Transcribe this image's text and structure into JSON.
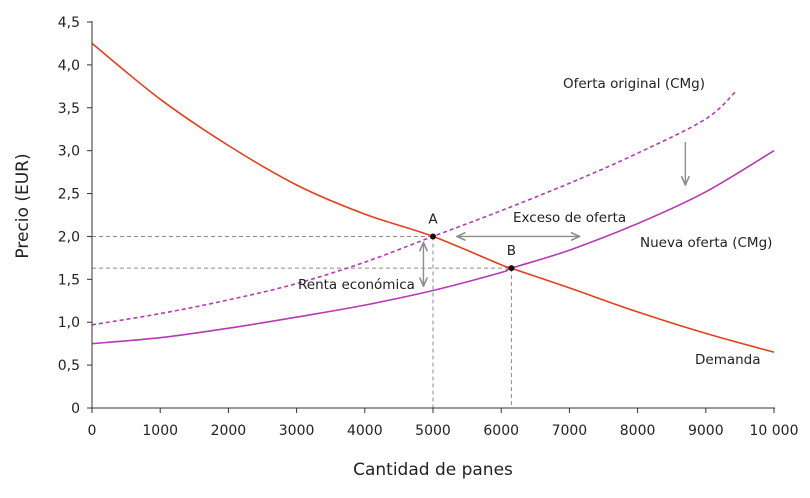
{
  "chart_data": {
    "type": "line",
    "xlabel": "Cantidad de panes",
    "ylabel": "Precio (EUR)",
    "xlim": [
      0,
      10000
    ],
    "ylim": [
      0,
      4.5
    ],
    "x_ticks": [
      0,
      1000,
      2000,
      3000,
      4000,
      5000,
      6000,
      7000,
      8000,
      9000,
      10000
    ],
    "x_tick_labels": [
      "0",
      "1000",
      "2000",
      "3000",
      "4000",
      "5000",
      "6000",
      "7000",
      "8000",
      "9000",
      "10 000"
    ],
    "y_ticks": [
      0,
      0.5,
      1.0,
      1.5,
      2.0,
      2.5,
      3.0,
      3.5,
      4.0,
      4.5
    ],
    "y_tick_labels": [
      "0",
      "0,5",
      "1,0",
      "1,5",
      "2,0",
      "2,5",
      "3,0",
      "3,5",
      "4,0",
      "4,5"
    ],
    "grid": false,
    "series": [
      {
        "name": "Demanda",
        "color": "#e0401c",
        "style": "solid",
        "x": [
          0,
          1000,
          2000,
          3000,
          4000,
          5000,
          6000,
          6150,
          7000,
          8000,
          9000,
          10000
        ],
        "y": [
          4.25,
          3.6,
          3.06,
          2.6,
          2.26,
          2.0,
          1.67,
          1.63,
          1.4,
          1.12,
          0.87,
          0.65
        ]
      },
      {
        "name": "Oferta original (CMg)",
        "color": "#b63ab3",
        "style": "dashed",
        "x": [
          0,
          1000,
          2000,
          3000,
          4000,
          5000,
          6000,
          7000,
          8000,
          9000,
          9450
        ],
        "y": [
          0.97,
          1.1,
          1.26,
          1.45,
          1.7,
          2.0,
          2.3,
          2.62,
          2.97,
          3.37,
          3.7
        ]
      },
      {
        "name": "Nueva oferta (CMg)",
        "color": "#b63ab3",
        "style": "solid",
        "x": [
          0,
          1000,
          2000,
          3000,
          4000,
          5000,
          6000,
          6150,
          7000,
          8000,
          9000,
          10000
        ],
        "y": [
          0.75,
          0.82,
          0.93,
          1.06,
          1.2,
          1.37,
          1.58,
          1.63,
          1.84,
          2.15,
          2.52,
          3.0
        ]
      }
    ],
    "points": [
      {
        "label": "A",
        "x": 5000,
        "y": 2.0
      },
      {
        "label": "B",
        "x": 6150,
        "y": 1.63
      }
    ],
    "annotations": {
      "excess_supply": "Exceso de oferta",
      "economic_rent": "Renta económica"
    },
    "excess_arrow": {
      "x_from": 5350,
      "x_to": 7150,
      "y": 2.0
    },
    "rent_arrow": {
      "x": 4860,
      "y_from": 1.63,
      "y_to": 2.0
    },
    "shift_arrow": {
      "x": 8700,
      "y_from": 3.1,
      "y_to": 2.6
    }
  }
}
